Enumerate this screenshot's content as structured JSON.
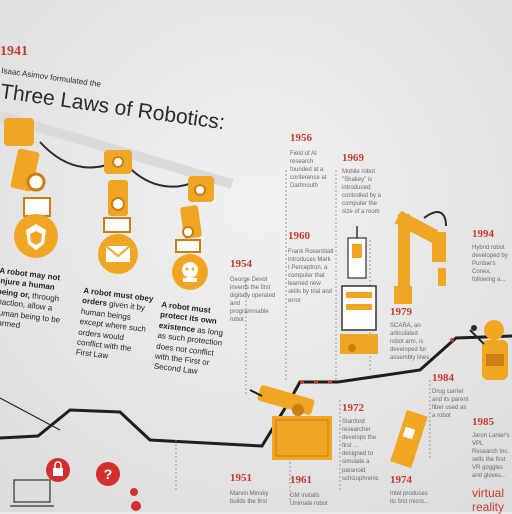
{
  "header": {
    "year": "1941",
    "intro": "Isaac Asimov formulated the",
    "title": "Three Laws of Robotics:"
  },
  "laws": [
    {
      "lead": "A robot may not injure a human being or,",
      "rest": "through inaction, allow a human being to be harmed"
    },
    {
      "lead": "A robot must obey orders",
      "rest": "given it by human beings except where such orders would conflict with the First Law"
    },
    {
      "lead": "A robot must protect its own existence",
      "rest": "as long as such protection does not conflict with the First or Second Law"
    }
  ],
  "timeline": [
    {
      "year": "1956",
      "text": "Field of AI research founded at a conference at Dartmouth"
    },
    {
      "year": "1969",
      "text": "Mobile robot \"Shakey\" is introduced; controlled by a computer the size of a room"
    },
    {
      "year": "1960",
      "text": "Frank Rosenblatt introduces Mark I Perceptron, a computer that learned new skills by trial and error"
    },
    {
      "year": "1954",
      "text": "George Devol invents the first digitally operated and programmable robot"
    },
    {
      "year": "1979",
      "text": "SCARA, an articulated robot arm, is developed for assembly lines"
    },
    {
      "year": "1984",
      "text": "Drug carrier and its parent fiber used as a robot"
    },
    {
      "year": "1994",
      "text": "Hybrid robot developed by Purdue's Conex, following a..."
    },
    {
      "year": "1972",
      "text": "Stanford researcher develops the first ... designed to simulate a paranoid schizophrenic"
    },
    {
      "year": "1951",
      "text": "Marvin Minsky builds the first"
    },
    {
      "year": "1961",
      "text": "GM installs Unimate robot"
    },
    {
      "year": "1974",
      "text": "Intel produces its first micro..."
    },
    {
      "year": "1985",
      "text": "Jaron Lanier's VPL Research Inc. sells the first VR goggles and gloves..."
    }
  ],
  "side_label": "virtual reality",
  "colors": {
    "accent": "#f0a623",
    "accent_dark": "#c97d12",
    "year": "#c73a2e",
    "line": "#1e1e1e",
    "paper": "#e9e9e9"
  },
  "icons": [
    "robot-arm-icon",
    "shield-icon",
    "envelope-icon",
    "robot-face-icon",
    "industrial-arm-icon",
    "shakey-robot-icon",
    "scara-arm-icon",
    "chip-icon",
    "vr-headset-icon",
    "lock-icon",
    "question-icon"
  ]
}
